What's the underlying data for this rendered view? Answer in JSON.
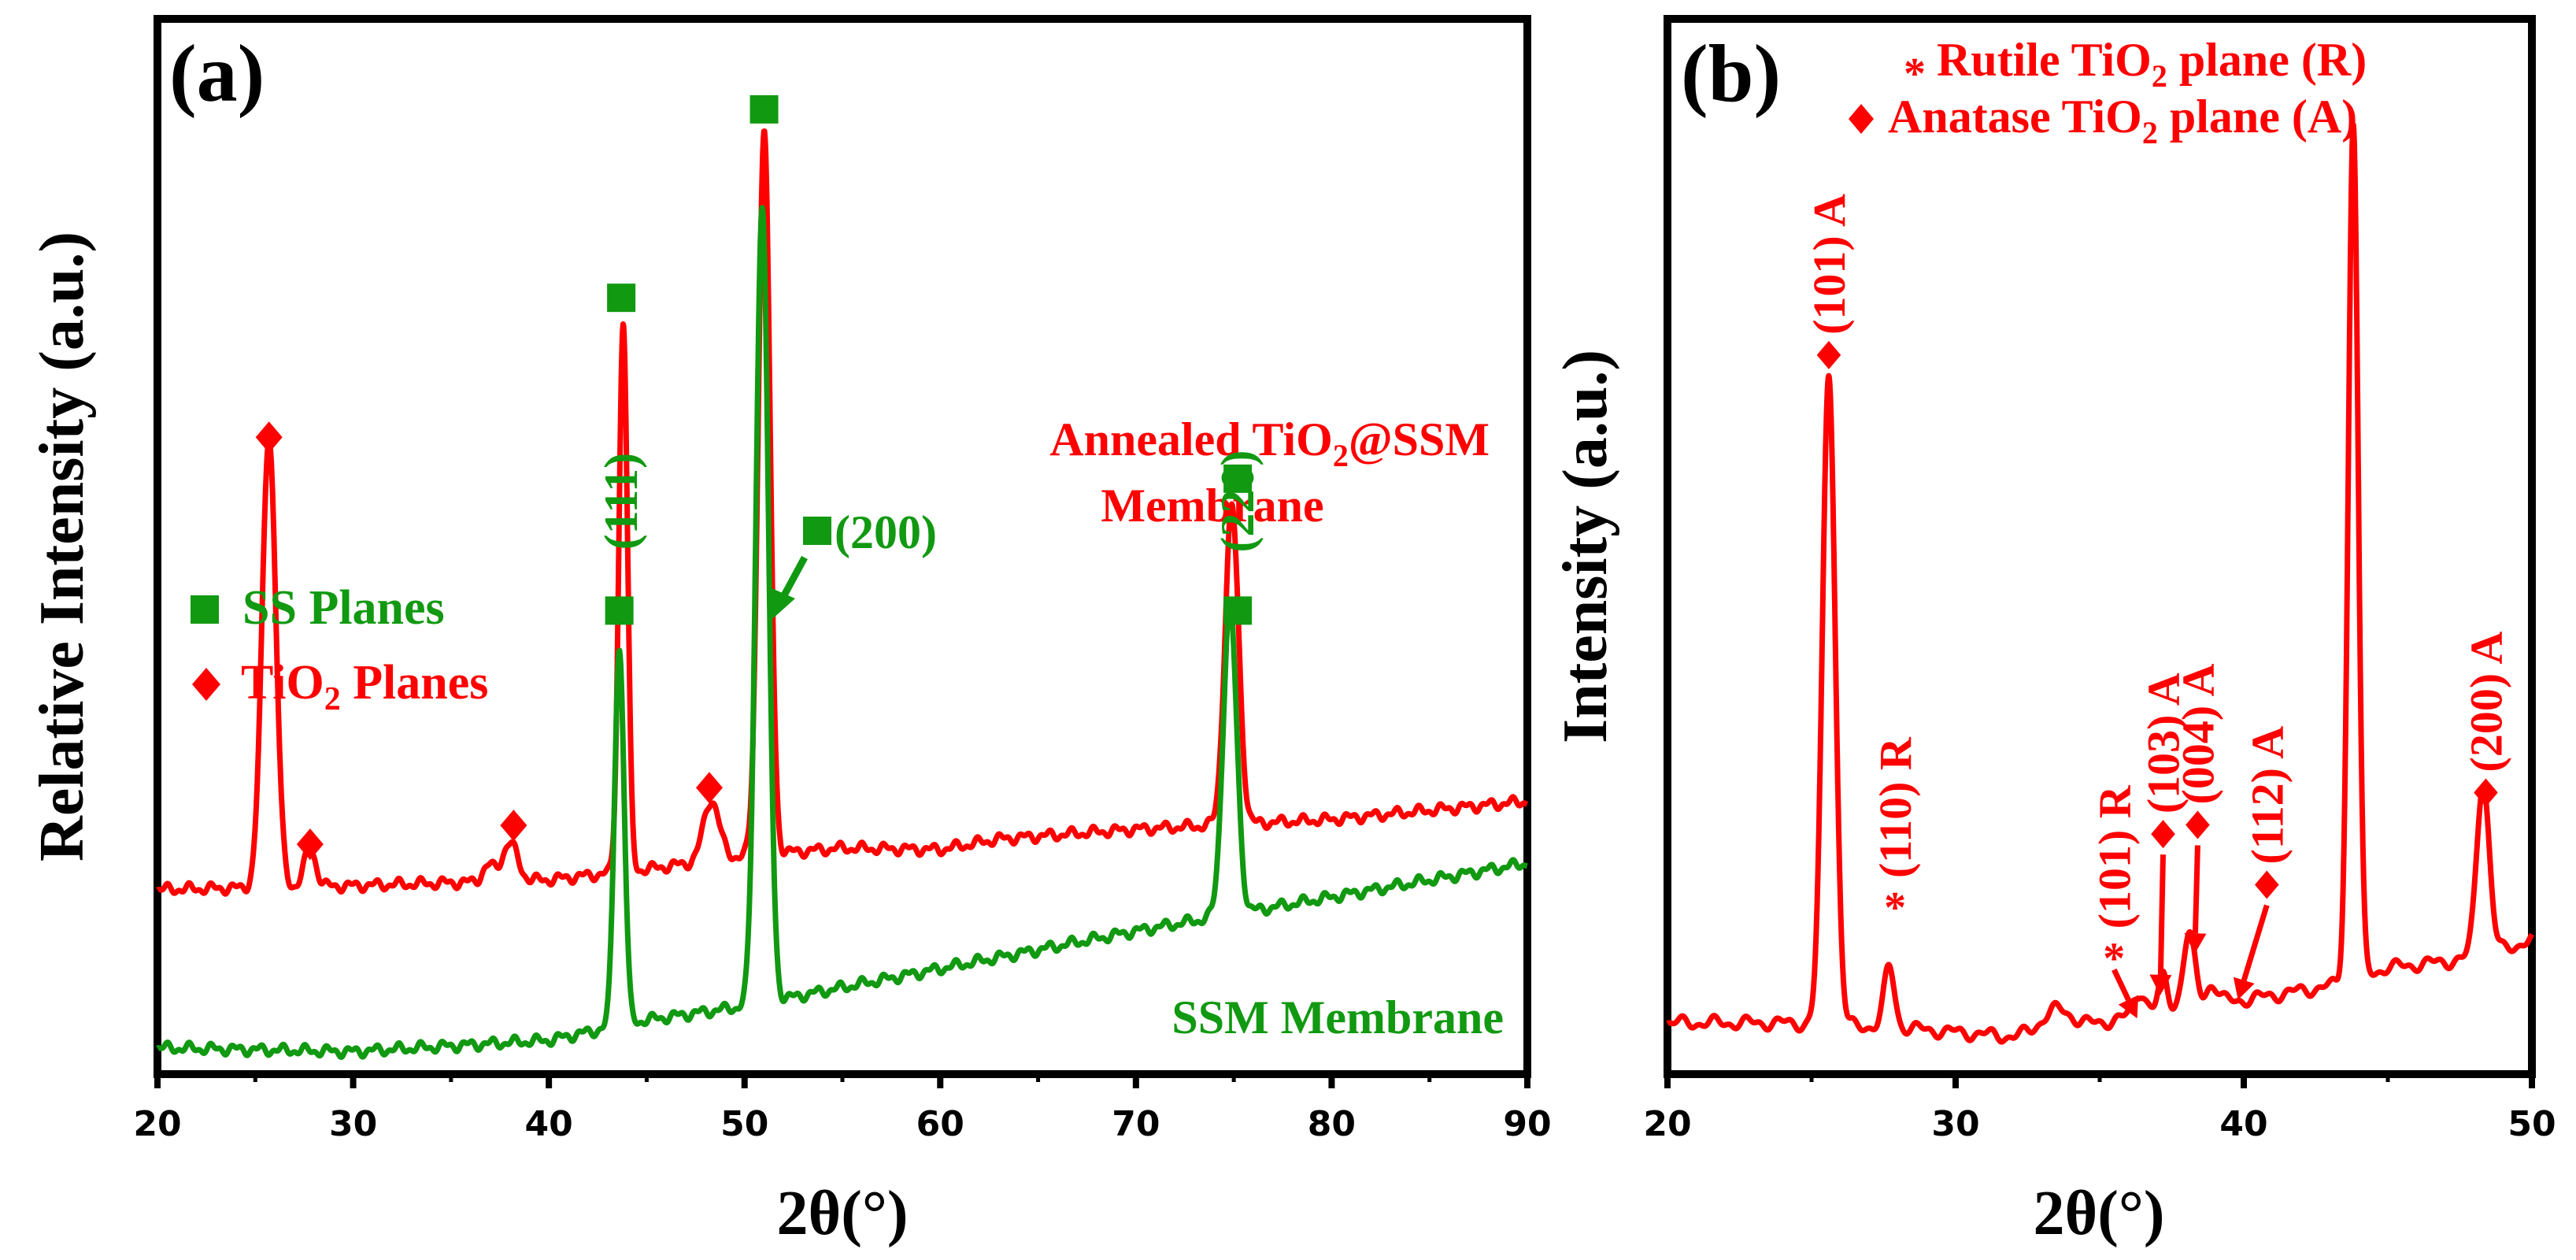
{
  "colors": {
    "red": "#ff0000",
    "green": "#119911",
    "black": "#000000"
  },
  "chart_data": [
    {
      "panel_label": "(a)",
      "type": "line",
      "xlabel": "2θ(°)",
      "ylabel": "Relative Intensity (a.u.)",
      "xlim": [
        20,
        90
      ],
      "x_ticks": [
        "20",
        "30",
        "40",
        "50",
        "60",
        "70",
        "80",
        "90"
      ],
      "y_ticks": [],
      "legend": [
        {
          "marker": "square",
          "color": "#119911",
          "label": "SS Planes"
        },
        {
          "marker": "diamond",
          "color": "#ff0000",
          "label_pre": "TiO",
          "label_sub": "2",
          "label_post": " Planes"
        }
      ],
      "series": [
        {
          "name": "Annealed TiO2@SSM Membrane",
          "label_line1_pre": "Annealed TiO",
          "label_line1_sub": "2",
          "label_line1_post": "@SSM",
          "label_line2": "Membrane",
          "color": "#ff0000",
          "baseline": [
            [
              20,
              2.45
            ],
            [
              30,
              2.5
            ],
            [
              40,
              2.58
            ],
            [
              45,
              2.72
            ],
            [
              50,
              2.9
            ],
            [
              55,
              3.0
            ],
            [
              60,
              2.98
            ],
            [
              63,
              3.12
            ],
            [
              70,
              3.25
            ],
            [
              80,
              3.38
            ],
            [
              90,
              3.62
            ]
          ],
          "peaks": [
            {
              "x": 25.7,
              "height": 6.0,
              "width": 0.35
            },
            {
              "x": 27.8,
              "height": 0.5,
              "width": 0.3
            },
            {
              "x": 36.9,
              "height": 0.2,
              "width": 0.3
            },
            {
              "x": 38.0,
              "height": 0.5,
              "width": 0.4
            },
            {
              "x": 48.3,
              "height": 0.8,
              "width": 0.4
            },
            {
              "x": 43.8,
              "height": 7.3,
              "width": 0.22
            },
            {
              "x": 51.0,
              "height": 9.6,
              "width": 0.3
            },
            {
              "x": 74.9,
              "height": 4.2,
              "width": 0.35
            }
          ],
          "markers": [
            {
              "x": 25.7,
              "y": 8.45,
              "shape": "diamond"
            },
            {
              "x": 27.8,
              "y": 3.05,
              "shape": "diamond"
            },
            {
              "x": 38.2,
              "y": 3.3,
              "shape": "diamond"
            },
            {
              "x": 48.2,
              "y": 3.8,
              "shape": "diamond"
            },
            {
              "x": 43.7,
              "y": 10.3,
              "shape": "square"
            },
            {
              "x": 51.0,
              "y": 12.8,
              "shape": "square"
            },
            {
              "x": 75.2,
              "y": 7.9,
              "shape": "square"
            }
          ]
        },
        {
          "name": "SSM Membrane",
          "label": "SSM Membrane",
          "color": "#119911",
          "baseline": [
            [
              20,
              0.35
            ],
            [
              30,
              0.3
            ],
            [
              40,
              0.45
            ],
            [
              45,
              0.72
            ],
            [
              50,
              0.9
            ],
            [
              60,
              1.4
            ],
            [
              70,
              1.9
            ],
            [
              80,
              2.35
            ],
            [
              90,
              2.8
            ]
          ],
          "peaks": [
            {
              "x": 43.6,
              "height": 5.0,
              "width": 0.25
            },
            {
              "x": 50.9,
              "height": 10.6,
              "width": 0.32
            },
            {
              "x": 74.8,
              "height": 4.1,
              "width": 0.35
            }
          ],
          "markers": [
            {
              "x": 43.6,
              "y": 6.15,
              "shape": "square"
            },
            {
              "x": 75.2,
              "y": 6.15,
              "shape": "square"
            }
          ],
          "hkl_labels": [
            {
              "x": 43.7,
              "y": 7.6,
              "text": "(111)",
              "rotated": true
            },
            {
              "x": 75.2,
              "y": 7.6,
              "text": "(220)",
              "rotated": true
            },
            {
              "x": 55.3,
              "y": 9.95,
              "text": "(200)",
              "rotated": false,
              "marker": "square"
            }
          ]
        }
      ]
    },
    {
      "panel_label": "(b)",
      "type": "line",
      "xlabel": "2θ(°)",
      "ylabel": "Intensity (a.u.)",
      "xlim": [
        20,
        50
      ],
      "x_ticks": [
        "20",
        "30",
        "40",
        "50"
      ],
      "y_ticks": [],
      "legend": [
        {
          "marker": "*",
          "color": "#ff0000",
          "label_pre": "Rutile TiO",
          "label_sub": "2",
          "label_post": " plane (R)"
        },
        {
          "marker": "diamond",
          "color": "#ff0000",
          "label_pre": "Anatase TiO",
          "label_sub": "2",
          "label_post": " plane (A)"
        }
      ],
      "series": [
        {
          "name": "Annealed TiO2@SSM",
          "color": "#ff0000",
          "baseline": [
            [
              20,
              0.3
            ],
            [
              24,
              0.3
            ],
            [
              28,
              0.25
            ],
            [
              32,
              0.15
            ],
            [
              35,
              0.3
            ],
            [
              38,
              0.5
            ],
            [
              40,
              0.55
            ],
            [
              43,
              0.7
            ],
            [
              45,
              0.9
            ],
            [
              48,
              1.0
            ],
            [
              50,
              1.2
            ]
          ],
          "peaks": [
            {
              "x": 25.6,
              "height": 7.1,
              "width": 0.22
            },
            {
              "x": 27.7,
              "height": 0.65,
              "width": 0.18
            },
            {
              "x": 33.5,
              "height": 0.22,
              "width": 0.5
            },
            {
              "x": 36.4,
              "height": 0.25,
              "width": 0.2
            },
            {
              "x": 37.2,
              "height": 0.35,
              "width": 0.15
            },
            {
              "x": 38.1,
              "height": 0.75,
              "width": 0.2
            },
            {
              "x": 38.9,
              "height": 0.2,
              "width": 0.2
            },
            {
              "x": 43.8,
              "height": 9.3,
              "width": 0.17
            },
            {
              "x": 48.3,
              "height": 1.9,
              "width": 0.22
            }
          ]
        }
      ],
      "annotations": [
        {
          "text": "(101) A",
          "marker": "diamond",
          "x": 25.6,
          "y": 7.55,
          "rotated": true
        },
        {
          "text": "(110) R",
          "marker": "*",
          "x": 27.9,
          "y": 1.65,
          "rotated": true
        },
        {
          "text": "(101) R",
          "marker": "*",
          "x": 35.5,
          "y": 1.1,
          "rotated": true,
          "arrow_to": [
            36.3,
            0.35
          ]
        },
        {
          "text": "(103) A",
          "marker": "diamond",
          "x": 37.2,
          "y": 2.35,
          "rotated": true,
          "arrow_to": [
            37.1,
            0.6
          ]
        },
        {
          "text": "(004) A",
          "marker": "diamond",
          "x": 38.4,
          "y": 2.45,
          "rotated": true,
          "arrow_to": [
            38.3,
            1.05
          ]
        },
        {
          "text": "(112) A",
          "marker": "diamond",
          "x": 40.8,
          "y": 1.8,
          "rotated": true,
          "arrow_to": [
            39.8,
            0.55
          ]
        },
        {
          "text": "(200) A",
          "marker": "diamond",
          "x": 48.4,
          "y": 2.8,
          "rotated": true
        }
      ]
    }
  ]
}
